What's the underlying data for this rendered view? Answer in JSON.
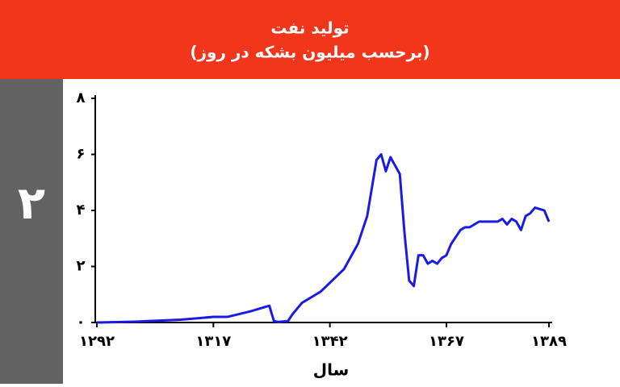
{
  "section_number": "۲",
  "chart_data": {
    "type": "line",
    "title": "تولید نفت",
    "subtitle": "(برحسب میلیون بشکه در روز)",
    "x_label": "سال",
    "x": [
      1292,
      1300,
      1310,
      1317,
      1320,
      1325,
      1329,
      1330,
      1331,
      1333,
      1334,
      1336,
      1340,
      1345,
      1348,
      1350,
      1352,
      1353,
      1354,
      1355,
      1357,
      1358,
      1359,
      1360,
      1361,
      1362,
      1363,
      1364,
      1365,
      1366,
      1367,
      1368,
      1370,
      1371,
      1372,
      1374,
      1378,
      1379,
      1380,
      1381,
      1382,
      1383,
      1384,
      1385,
      1386,
      1388,
      1389
    ],
    "series": [
      {
        "name": "تولید نفت",
        "color": "#1a1ae6",
        "values": [
          0,
          0.03,
          0.1,
          0.2,
          0.2,
          0.4,
          0.6,
          0.05,
          0.02,
          0.05,
          0.3,
          0.7,
          1.1,
          1.9,
          2.8,
          3.8,
          5.8,
          6.0,
          5.4,
          5.9,
          5.3,
          3.2,
          1.5,
          1.3,
          2.4,
          2.4,
          2.1,
          2.2,
          2.1,
          2.3,
          2.4,
          2.8,
          3.3,
          3.4,
          3.4,
          3.6,
          3.6,
          3.7,
          3.5,
          3.7,
          3.6,
          3.3,
          3.8,
          3.9,
          4.1,
          4.0,
          3.6
        ]
      }
    ],
    "xlim": [
      1292,
      1389
    ],
    "xticks": [
      {
        "value": 1292,
        "label": "۱۲۹۲"
      },
      {
        "value": 1317,
        "label": "۱۳۱۷"
      },
      {
        "value": 1342,
        "label": "۱۳۴۲"
      },
      {
        "value": 1367,
        "label": "۱۳۶۷"
      },
      {
        "value": 1389,
        "label": "۱۳۸۹"
      }
    ],
    "ylim": [
      0,
      8
    ],
    "yticks": [
      {
        "value": 0,
        "label": "۰"
      },
      {
        "value": 2,
        "label": "۲"
      },
      {
        "value": 4,
        "label": "۴"
      },
      {
        "value": 6,
        "label": "۶"
      },
      {
        "value": 8,
        "label": "۸"
      }
    ]
  }
}
